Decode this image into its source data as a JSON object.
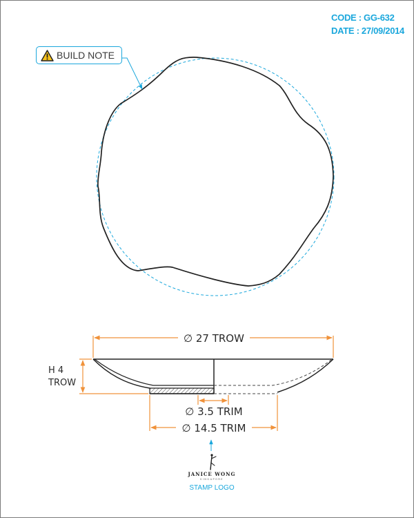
{
  "header": {
    "code": "CODE : GG-632",
    "date": "DATE : 27/09/2014"
  },
  "callout": {
    "label": "BUILD NOTE",
    "icon": "warning-icon"
  },
  "dimensions": {
    "diameter_top": "∅ 27 TROW",
    "height_line1": "H 4",
    "height_line2": "TROW",
    "diameter_base": "∅ 3.5 TRIM",
    "diameter_foot": "∅ 14.5 TRIM"
  },
  "logo": {
    "brand": "JANICE WONG",
    "sub": "SINGAPORE",
    "caption": "STAMP LOGO"
  },
  "colors": {
    "accent_blue": "#1aa7dc",
    "dimension_orange": "#f0923a",
    "outline": "#222222",
    "background": "#ffffff"
  }
}
